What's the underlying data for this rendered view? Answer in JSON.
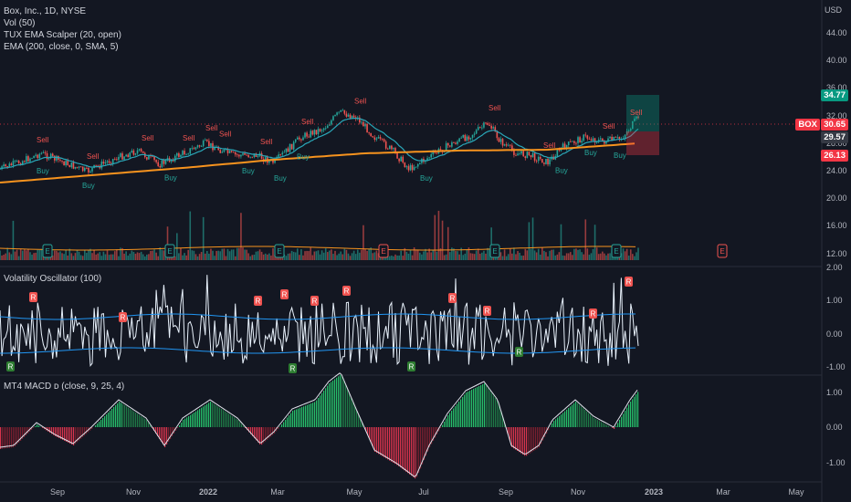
{
  "symbol_title": "Box, Inc., 1D, NYSE",
  "currency": "USD",
  "indicators": {
    "volume": "Vol (50)",
    "tux": "TUX EMA Scalper (20, open)",
    "ema": "EMA (200, close, 0, SMA, 5)",
    "volatility": "Volatility Oscillator (100)",
    "macd": "MT4 MACD ᴅ (close, 9, 25, 4)"
  },
  "price_axis": {
    "ticks": [
      "44.00",
      "40.00",
      "36.00",
      "32.00",
      "28.00",
      "24.00",
      "20.00",
      "16.00",
      "12.00"
    ],
    "tags": {
      "target": "34.77",
      "symbol": "BOX",
      "last": "30.65",
      "level": "29.57",
      "stop": "26.13"
    }
  },
  "volosc_axis": {
    "ticks": [
      "2.00",
      "1.00",
      "0.00",
      "-1.00"
    ]
  },
  "macd_axis": {
    "ticks": [
      "1.00",
      "0.00",
      "-1.00"
    ]
  },
  "time_axis": [
    "Sep",
    "Nov",
    "2022",
    "Mar",
    "May",
    "Jul",
    "Sep",
    "Nov",
    "2023",
    "Mar",
    "May"
  ],
  "signal_labels": {
    "buy": "Buy",
    "sell": "Sell",
    "R": "R",
    "E": "E"
  },
  "colors": {
    "bg": "#131722",
    "up": "#26a69a",
    "down": "#ef5350",
    "ema200": "#f7931e",
    "tux": "#2aa7b8",
    "osc": "#e8f1fb",
    "band": "#2196f3",
    "macd_up": "#26c06a",
    "macd_down": "#d9344d"
  }
}
